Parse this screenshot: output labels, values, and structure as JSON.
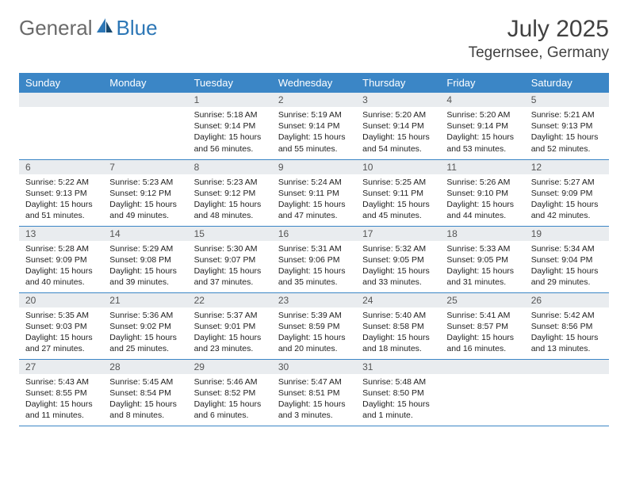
{
  "brand": {
    "part1": "General",
    "part2": "Blue"
  },
  "title": "July 2025",
  "location": "Tegernsee, Germany",
  "colors": {
    "header_bg": "#3b86c6",
    "header_fg": "#ffffff",
    "daynum_bg": "#e9ecef",
    "row_border": "#3b86c6",
    "logo_gray": "#6a6a6a",
    "logo_blue": "#2d77b6"
  },
  "weekdays": [
    "Sunday",
    "Monday",
    "Tuesday",
    "Wednesday",
    "Thursday",
    "Friday",
    "Saturday"
  ],
  "weeks": [
    [
      null,
      null,
      {
        "n": "1",
        "sr": "5:18 AM",
        "ss": "9:14 PM",
        "dl": "15 hours and 56 minutes."
      },
      {
        "n": "2",
        "sr": "5:19 AM",
        "ss": "9:14 PM",
        "dl": "15 hours and 55 minutes."
      },
      {
        "n": "3",
        "sr": "5:20 AM",
        "ss": "9:14 PM",
        "dl": "15 hours and 54 minutes."
      },
      {
        "n": "4",
        "sr": "5:20 AM",
        "ss": "9:14 PM",
        "dl": "15 hours and 53 minutes."
      },
      {
        "n": "5",
        "sr": "5:21 AM",
        "ss": "9:13 PM",
        "dl": "15 hours and 52 minutes."
      }
    ],
    [
      {
        "n": "6",
        "sr": "5:22 AM",
        "ss": "9:13 PM",
        "dl": "15 hours and 51 minutes."
      },
      {
        "n": "7",
        "sr": "5:23 AM",
        "ss": "9:12 PM",
        "dl": "15 hours and 49 minutes."
      },
      {
        "n": "8",
        "sr": "5:23 AM",
        "ss": "9:12 PM",
        "dl": "15 hours and 48 minutes."
      },
      {
        "n": "9",
        "sr": "5:24 AM",
        "ss": "9:11 PM",
        "dl": "15 hours and 47 minutes."
      },
      {
        "n": "10",
        "sr": "5:25 AM",
        "ss": "9:11 PM",
        "dl": "15 hours and 45 minutes."
      },
      {
        "n": "11",
        "sr": "5:26 AM",
        "ss": "9:10 PM",
        "dl": "15 hours and 44 minutes."
      },
      {
        "n": "12",
        "sr": "5:27 AM",
        "ss": "9:09 PM",
        "dl": "15 hours and 42 minutes."
      }
    ],
    [
      {
        "n": "13",
        "sr": "5:28 AM",
        "ss": "9:09 PM",
        "dl": "15 hours and 40 minutes."
      },
      {
        "n": "14",
        "sr": "5:29 AM",
        "ss": "9:08 PM",
        "dl": "15 hours and 39 minutes."
      },
      {
        "n": "15",
        "sr": "5:30 AM",
        "ss": "9:07 PM",
        "dl": "15 hours and 37 minutes."
      },
      {
        "n": "16",
        "sr": "5:31 AM",
        "ss": "9:06 PM",
        "dl": "15 hours and 35 minutes."
      },
      {
        "n": "17",
        "sr": "5:32 AM",
        "ss": "9:05 PM",
        "dl": "15 hours and 33 minutes."
      },
      {
        "n": "18",
        "sr": "5:33 AM",
        "ss": "9:05 PM",
        "dl": "15 hours and 31 minutes."
      },
      {
        "n": "19",
        "sr": "5:34 AM",
        "ss": "9:04 PM",
        "dl": "15 hours and 29 minutes."
      }
    ],
    [
      {
        "n": "20",
        "sr": "5:35 AM",
        "ss": "9:03 PM",
        "dl": "15 hours and 27 minutes."
      },
      {
        "n": "21",
        "sr": "5:36 AM",
        "ss": "9:02 PM",
        "dl": "15 hours and 25 minutes."
      },
      {
        "n": "22",
        "sr": "5:37 AM",
        "ss": "9:01 PM",
        "dl": "15 hours and 23 minutes."
      },
      {
        "n": "23",
        "sr": "5:39 AM",
        "ss": "8:59 PM",
        "dl": "15 hours and 20 minutes."
      },
      {
        "n": "24",
        "sr": "5:40 AM",
        "ss": "8:58 PM",
        "dl": "15 hours and 18 minutes."
      },
      {
        "n": "25",
        "sr": "5:41 AM",
        "ss": "8:57 PM",
        "dl": "15 hours and 16 minutes."
      },
      {
        "n": "26",
        "sr": "5:42 AM",
        "ss": "8:56 PM",
        "dl": "15 hours and 13 minutes."
      }
    ],
    [
      {
        "n": "27",
        "sr": "5:43 AM",
        "ss": "8:55 PM",
        "dl": "15 hours and 11 minutes."
      },
      {
        "n": "28",
        "sr": "5:45 AM",
        "ss": "8:54 PM",
        "dl": "15 hours and 8 minutes."
      },
      {
        "n": "29",
        "sr": "5:46 AM",
        "ss": "8:52 PM",
        "dl": "15 hours and 6 minutes."
      },
      {
        "n": "30",
        "sr": "5:47 AM",
        "ss": "8:51 PM",
        "dl": "15 hours and 3 minutes."
      },
      {
        "n": "31",
        "sr": "5:48 AM",
        "ss": "8:50 PM",
        "dl": "15 hours and 1 minute."
      },
      null,
      null
    ]
  ],
  "labels": {
    "sunrise": "Sunrise: ",
    "sunset": "Sunset: ",
    "daylight": "Daylight: "
  }
}
